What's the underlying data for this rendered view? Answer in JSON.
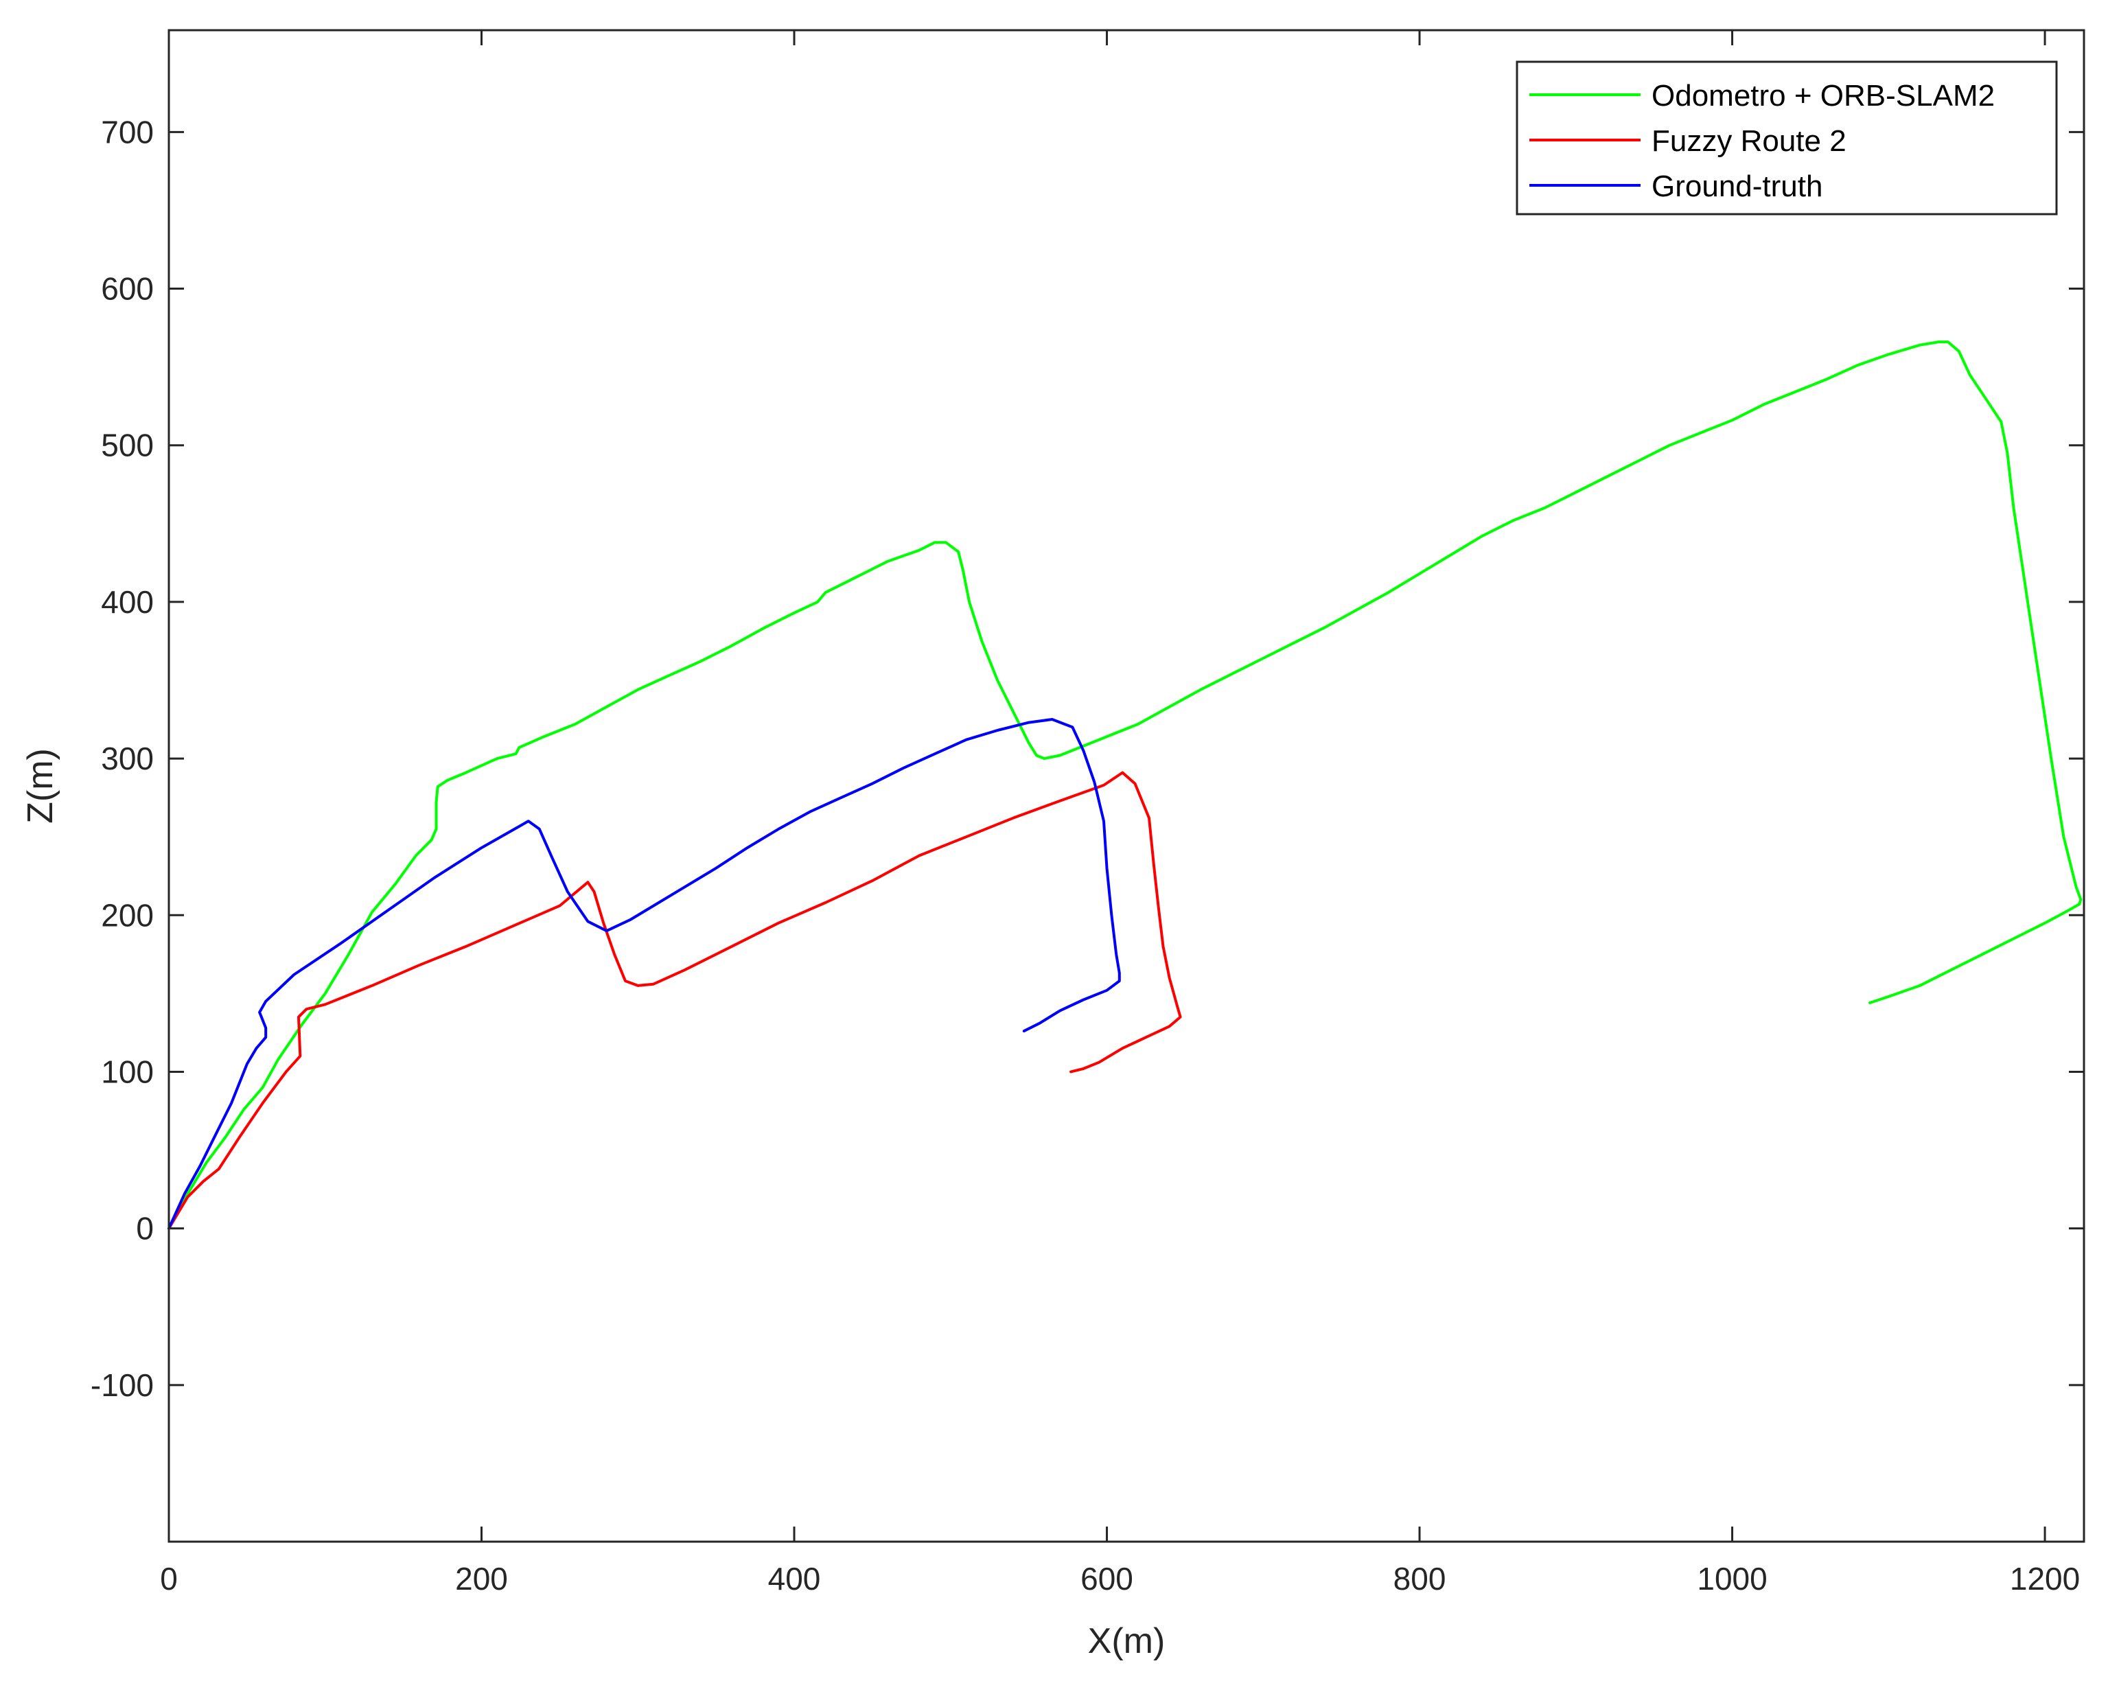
{
  "chart_data": {
    "type": "line",
    "title": "",
    "xlabel": "X(m)",
    "ylabel": "Z(m)",
    "xlim": [
      0,
      1225
    ],
    "ylim": [
      -200,
      765
    ],
    "xticks": [
      0,
      200,
      400,
      600,
      800,
      1000,
      1200
    ],
    "yticks": [
      -100,
      0,
      100,
      200,
      300,
      400,
      500,
      600,
      700
    ],
    "xtick_labels": [
      "0",
      "200",
      "400",
      "600",
      "800",
      "1000",
      "1200"
    ],
    "ytick_labels": [
      "-100",
      "0",
      "100",
      "200",
      "300",
      "400",
      "500",
      "600",
      "700"
    ],
    "grid": false,
    "legend_position": "top-right",
    "series": [
      {
        "name": "Odometro + ORB-SLAM2",
        "color": "#00ff00",
        "x": [
          0,
          12,
          24,
          36,
          48,
          60,
          70,
          85,
          100,
          115,
          130,
          145,
          158,
          168,
          171,
          171,
          172,
          178,
          190,
          210,
          222,
          224,
          240,
          260,
          280,
          300,
          320,
          340,
          360,
          380,
          400,
          415,
          420,
          440,
          460,
          480,
          490,
          497,
          505,
          508,
          512,
          520,
          530,
          545,
          550,
          555,
          560,
          570,
          585,
          600,
          620,
          640,
          660,
          680,
          700,
          720,
          740,
          760,
          780,
          800,
          820,
          840,
          860,
          880,
          900,
          920,
          940,
          960,
          980,
          1000,
          1020,
          1040,
          1060,
          1080,
          1100,
          1120,
          1132,
          1138,
          1145,
          1152,
          1162,
          1172,
          1176,
          1180,
          1186,
          1192,
          1198,
          1204,
          1212,
          1220,
          1223,
          1222,
          1215,
          1200,
          1180,
          1160,
          1140,
          1120,
          1100,
          1088
        ],
        "y": [
          0,
          22,
          42,
          58,
          76,
          90,
          108,
          130,
          150,
          175,
          202,
          220,
          238,
          248,
          255,
          272,
          282,
          286,
          291,
          300,
          303,
          307,
          314,
          322,
          333,
          344,
          353,
          362,
          372,
          383,
          393,
          400,
          406,
          416,
          426,
          433,
          438,
          438,
          432,
          420,
          400,
          375,
          350,
          320,
          310,
          302,
          300,
          302,
          308,
          314,
          322,
          333,
          344,
          354,
          364,
          374,
          384,
          395,
          406,
          418,
          430,
          442,
          452,
          460,
          470,
          480,
          490,
          500,
          508,
          516,
          526,
          534,
          542,
          551,
          558,
          564,
          566,
          566,
          560,
          545,
          530,
          515,
          495,
          460,
          420,
          380,
          340,
          300,
          250,
          218,
          210,
          207,
          203,
          195,
          185,
          175,
          165,
          155,
          148,
          144
        ]
      },
      {
        "name": "Fuzzy Route 2",
        "color": "#ff0000",
        "x": [
          0,
          12,
          22,
          32,
          45,
          60,
          75,
          84,
          83,
          88,
          100,
          130,
          160,
          190,
          220,
          250,
          268,
          272,
          278,
          285,
          292,
          300,
          310,
          330,
          360,
          390,
          420,
          450,
          480,
          510,
          540,
          570,
          598,
          610,
          618,
          627,
          630,
          633,
          636,
          640,
          645,
          647,
          640,
          625,
          610,
          595,
          585,
          577
        ],
        "y": [
          0,
          20,
          30,
          38,
          58,
          80,
          100,
          110,
          135,
          140,
          143,
          155,
          168,
          180,
          193,
          206,
          221,
          215,
          195,
          175,
          158,
          155,
          156,
          165,
          180,
          195,
          208,
          222,
          238,
          250,
          262,
          273,
          283,
          291,
          284,
          262,
          232,
          205,
          180,
          160,
          142,
          135,
          129,
          122,
          115,
          106,
          102,
          100
        ]
      },
      {
        "name": "Ground-truth",
        "color": "#0000ff",
        "x": [
          0,
          10,
          20,
          30,
          40,
          50,
          56,
          62,
          62,
          58,
          62,
          80,
          110,
          140,
          170,
          200,
          230,
          237,
          245,
          255,
          268,
          280,
          295,
          310,
          330,
          350,
          370,
          390,
          410,
          430,
          450,
          470,
          490,
          510,
          530,
          550,
          565,
          578,
          585,
          592,
          598,
          600,
          603,
          606,
          608,
          608,
          600,
          585,
          570,
          557,
          547
        ],
        "y": [
          0,
          22,
          40,
          60,
          80,
          105,
          115,
          122,
          128,
          138,
          145,
          162,
          182,
          203,
          224,
          243,
          260,
          255,
          237,
          215,
          196,
          190,
          197,
          206,
          218,
          230,
          243,
          255,
          266,
          275,
          284,
          294,
          303,
          312,
          318,
          323,
          325,
          320,
          305,
          285,
          260,
          230,
          200,
          175,
          163,
          158,
          152,
          146,
          139,
          131,
          126
        ]
      }
    ]
  }
}
